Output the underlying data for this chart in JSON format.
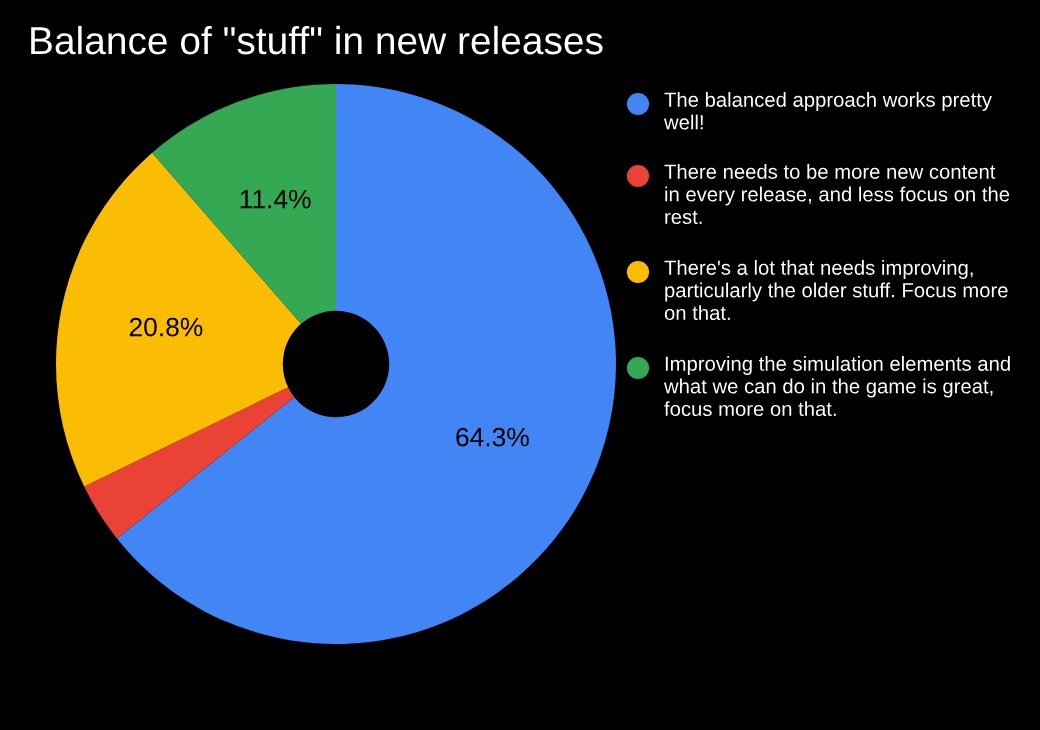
{
  "chart_data": {
    "type": "donut",
    "title": "Balance of \"stuff\" in new releases",
    "categories": [
      "The balanced approach works pretty well!",
      "There needs to be more new content in every release, and less focus on the rest.",
      "There's a lot that needs improving, particularly the older stuff. Focus more on that.",
      "Improving the simulation elements and what we can do in the game is great, focus more on that."
    ],
    "values": [
      64.3,
      3.5,
      20.8,
      11.4
    ],
    "colors": [
      "#4285f4",
      "#ea4335",
      "#fbbc04",
      "#34a853"
    ],
    "value_labels": [
      "64.3%",
      null,
      "20.8%",
      "11.4%"
    ],
    "legend": "right"
  }
}
